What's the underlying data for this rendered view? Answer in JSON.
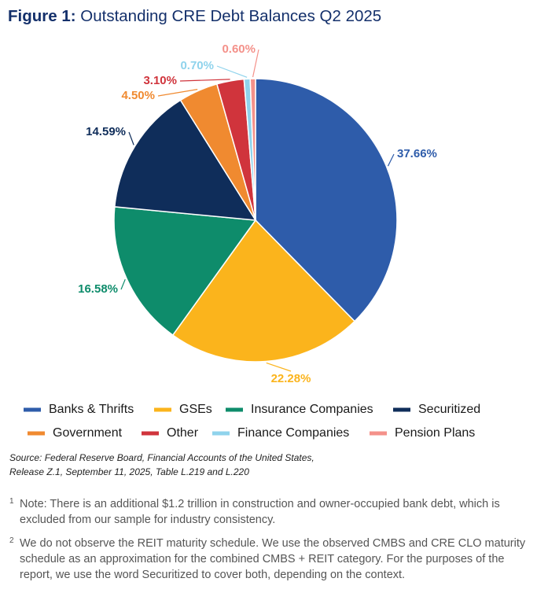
{
  "chart_data": {
    "type": "pie",
    "title_prefix": "Figure 1:",
    "title": "Outstanding CRE Debt Balances Q2 2025",
    "categories": [
      "Banks & Thrifts",
      "GSEs",
      "Insurance Companies",
      "Securitized",
      "Government",
      "Other",
      "Finance Companies",
      "Pension Plans"
    ],
    "values": [
      37.66,
      22.28,
      16.58,
      14.59,
      4.5,
      3.1,
      0.7,
      0.6
    ],
    "value_labels": [
      "37.66%",
      "22.28%",
      "16.58%",
      "14.59%",
      "4.50%",
      "3.10%",
      "0.70%",
      "0.60%"
    ],
    "colors": [
      "#2e5caa",
      "#fbb41c",
      "#0e8c6b",
      "#0f2d5a",
      "#f08a30",
      "#d0343c",
      "#8fd3ec",
      "#f4918a"
    ],
    "source": "Source: Federal Reserve Board, Financial Accounts of the United States, Release Z.1, September 11, 2025, Table L.219 and L.220"
  },
  "notes": [
    {
      "marker": "1",
      "text": "Note: There is an additional $1.2 trillion in construction and owner-occupied bank debt, which is excluded from our sample for industry consistency."
    },
    {
      "marker": "2",
      "text": "We do not observe the REIT maturity schedule. We use the observed CMBS and CRE CLO maturity schedule as an approximation for the combined CMBS + REIT category. For the purposes of the report, we use the word Securitized to cover both, depending on the context."
    }
  ]
}
